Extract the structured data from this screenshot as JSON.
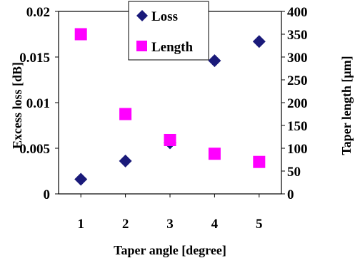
{
  "chart_data": {
    "type": "scatter",
    "xlabel": "Taper angle [degree]",
    "ylabel_left": "Excess loss [dB]",
    "ylabel_right": "Taper length [μm]",
    "x_ticks": [
      "1",
      "2",
      "3",
      "4",
      "5"
    ],
    "y_left_ticks": [
      "0",
      "0.005",
      "0.01",
      "0.015",
      "0.02"
    ],
    "y_right_ticks": [
      "0",
      "50",
      "100",
      "150",
      "200",
      "250",
      "300",
      "350",
      "400"
    ],
    "xlim": [
      0.5,
      5.5
    ],
    "ylim_left": [
      0,
      0.02
    ],
    "ylim_right": [
      0,
      400
    ],
    "grid": false,
    "legend_position": "top-center",
    "series": [
      {
        "name": "Loss",
        "axis": "left",
        "marker": "diamond",
        "color": "#1a1a7a",
        "x": [
          1,
          2,
          3,
          4,
          5
        ],
        "values": [
          0.0016,
          0.0036,
          0.0056,
          0.0146,
          0.0167
        ]
      },
      {
        "name": "Length",
        "axis": "right",
        "marker": "square",
        "color": "#ff00ff",
        "x": [
          1,
          2,
          3,
          4,
          5
        ],
        "values": [
          350,
          175,
          118,
          88,
          70
        ]
      }
    ]
  }
}
